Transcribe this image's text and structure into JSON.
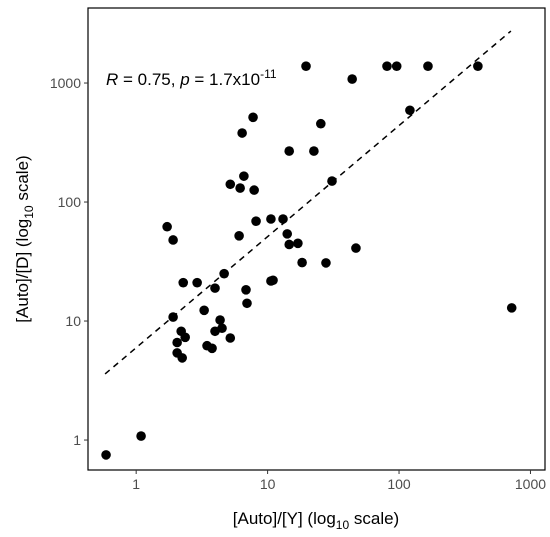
{
  "chart_data": {
    "type": "scatter",
    "x_label": {
      "text": "[Auto]/[Y] (log",
      "sub": "10",
      "tail": " scale)"
    },
    "y_label": {
      "text": "[Auto]/[D] (log",
      "sub": "10",
      "tail": " scale)"
    },
    "annotation": {
      "r": "R",
      "r_text": " = 0.75, ",
      "p": "p",
      "p_text": " = 1.7x10",
      "p_exp": "-11"
    },
    "x_log": true,
    "y_log": true,
    "xlim": [
      0.43,
      1290
    ],
    "ylim": [
      0.56,
      4270
    ],
    "xticks": [
      1,
      10,
      100,
      1000
    ],
    "yticks": [
      1,
      10,
      100,
      1000
    ],
    "color": "#000000",
    "x": [
      0.59,
      1.09,
      1.72,
      1.91,
      1.91,
      2.05,
      2.05,
      2.2,
      2.28,
      2.24,
      2.36,
      2.91,
      3.29,
      3.46,
      3.78,
      3.98,
      3.98,
      4.35,
      4.5,
      4.67,
      5.2,
      5.2,
      6.07,
      6.18,
      6.4,
      6.6,
      6.85,
      6.97,
      7.75,
      7.9,
      8.17,
      10.6,
      10.6,
      11,
      13.1,
      14.1,
      14.6,
      14.6,
      17.0,
      18.3,
      19.6,
      22.5,
      25.4,
      27.8,
      30.9,
      44,
      47,
      81,
      96,
      121,
      166,
      398,
      720
    ],
    "y": [
      0.75,
      1.08,
      62,
      48,
      10.8,
      6.6,
      5.4,
      8.2,
      21,
      4.9,
      7.3,
      21,
      12.3,
      6.2,
      5.9,
      18.9,
      8.2,
      10.2,
      8.7,
      25,
      7.2,
      141,
      52,
      131,
      380,
      165,
      18.3,
      14.1,
      515,
      126,
      69,
      72,
      21.7,
      22,
      72,
      54,
      268,
      44,
      45,
      31,
      1385,
      268,
      455,
      30.8,
      150,
      1080,
      41,
      1385,
      1385,
      590,
      1385,
      1385,
      12.9
    ],
    "fit_line": {
      "x": [
        0.58,
        710
      ],
      "y": [
        3.59,
        2735
      ]
    }
  }
}
